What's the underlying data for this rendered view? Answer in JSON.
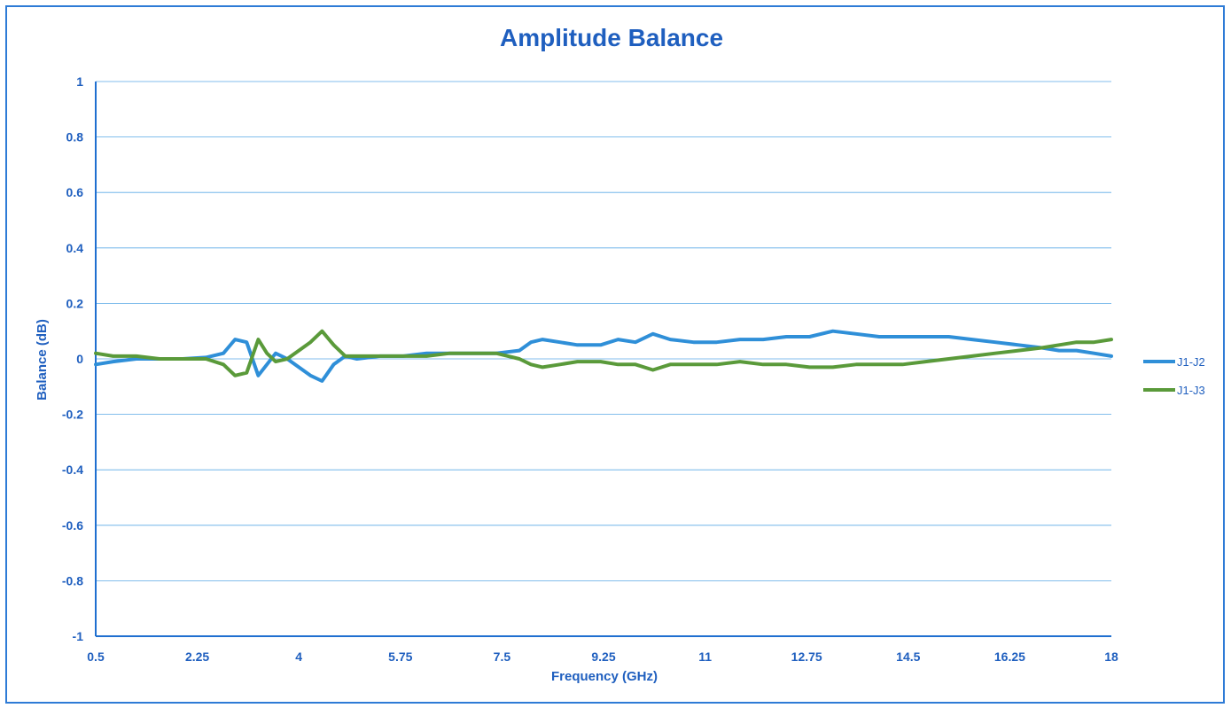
{
  "chart_data": {
    "type": "line",
    "title": "Amplitude Balance",
    "xlabel": "Frequency (GHz)",
    "ylabel": "Balance (dB)",
    "xlim": [
      0.5,
      18
    ],
    "ylim": [
      -1,
      1
    ],
    "x_ticks": [
      "0.5",
      "2.25",
      "4",
      "5.75",
      "7.5",
      "9.25",
      "11",
      "12.75",
      "14.5",
      "16.25",
      "18"
    ],
    "y_ticks": [
      "1",
      "0.8",
      "0.6",
      "0.4",
      "0.2",
      "0",
      "-0.2",
      "-0.4",
      "-0.6",
      "-0.8",
      "-1"
    ],
    "grid": true,
    "legend_position": "right",
    "series": [
      {
        "name": "J1-J2",
        "color": "#2f8fd8",
        "x": [
          0.5,
          0.8,
          1.2,
          1.6,
          2.0,
          2.4,
          2.7,
          2.9,
          3.1,
          3.3,
          3.45,
          3.6,
          3.8,
          4.0,
          4.2,
          4.4,
          4.6,
          4.8,
          5.0,
          5.4,
          5.8,
          6.2,
          6.6,
          7.0,
          7.4,
          7.8,
          8.0,
          8.2,
          8.5,
          8.8,
          9.2,
          9.5,
          9.8,
          10.1,
          10.4,
          10.8,
          11.2,
          11.6,
          12.0,
          12.4,
          12.8,
          13.2,
          13.6,
          14.0,
          14.4,
          14.8,
          15.2,
          15.6,
          16.0,
          16.4,
          16.8,
          17.1,
          17.4,
          17.7,
          18.0
        ],
        "y": [
          -0.02,
          -0.01,
          0.0,
          0.0,
          0.0,
          0.005,
          0.02,
          0.07,
          0.06,
          -0.06,
          -0.02,
          0.02,
          0.0,
          -0.03,
          -0.06,
          -0.08,
          -0.02,
          0.01,
          0.0,
          0.01,
          0.01,
          0.02,
          0.02,
          0.02,
          0.02,
          0.03,
          0.06,
          0.07,
          0.06,
          0.05,
          0.05,
          0.07,
          0.06,
          0.09,
          0.07,
          0.06,
          0.06,
          0.07,
          0.07,
          0.08,
          0.08,
          0.1,
          0.09,
          0.08,
          0.08,
          0.08,
          0.08,
          0.07,
          0.06,
          0.05,
          0.04,
          0.03,
          0.03,
          0.02,
          0.01
        ]
      },
      {
        "name": "J1-J3",
        "color": "#5a9a3a",
        "x": [
          0.5,
          0.8,
          1.2,
          1.6,
          2.0,
          2.4,
          2.7,
          2.9,
          3.1,
          3.3,
          3.45,
          3.6,
          3.8,
          4.0,
          4.2,
          4.4,
          4.6,
          4.8,
          5.0,
          5.4,
          5.8,
          6.2,
          6.6,
          7.0,
          7.4,
          7.8,
          8.0,
          8.2,
          8.5,
          8.8,
          9.2,
          9.5,
          9.8,
          10.1,
          10.4,
          10.8,
          11.2,
          11.6,
          12.0,
          12.4,
          12.8,
          13.2,
          13.6,
          14.0,
          14.4,
          14.8,
          15.2,
          15.6,
          16.0,
          16.4,
          16.8,
          17.1,
          17.4,
          17.7,
          18.0
        ],
        "y": [
          0.02,
          0.01,
          0.01,
          0.0,
          0.0,
          0.0,
          -0.02,
          -0.06,
          -0.05,
          0.07,
          0.02,
          -0.01,
          0.0,
          0.03,
          0.06,
          0.1,
          0.05,
          0.01,
          0.01,
          0.01,
          0.01,
          0.01,
          0.02,
          0.02,
          0.02,
          0.0,
          -0.02,
          -0.03,
          -0.02,
          -0.01,
          -0.01,
          -0.02,
          -0.02,
          -0.04,
          -0.02,
          -0.02,
          -0.02,
          -0.01,
          -0.02,
          -0.02,
          -0.03,
          -0.03,
          -0.02,
          -0.02,
          -0.02,
          -0.01,
          0.0,
          0.01,
          0.02,
          0.03,
          0.04,
          0.05,
          0.06,
          0.06,
          0.07
        ]
      }
    ]
  }
}
